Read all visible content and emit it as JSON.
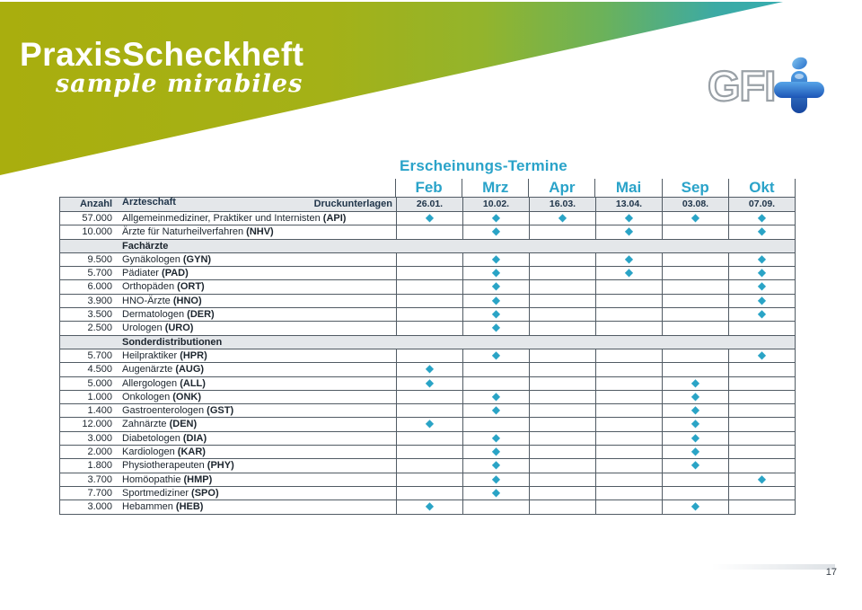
{
  "slide": {
    "brand_title": "PraxisScheckheft",
    "brand_subtitle": "sample mirabiles",
    "logo_text": "GFI",
    "page_number": "17",
    "colors": {
      "accent_cyan": "#2aa3c9",
      "navy": "#20354a",
      "banner_left_olive": "#a9ae0e",
      "banner_right_teal": "#2fb0bf",
      "band_gray": "#e4e7ea",
      "grid_line": "#515b64",
      "marker_cyan": "#2aa4c6"
    }
  },
  "table": {
    "title": "Erscheinungs-Termine",
    "marker": "◆",
    "months": [
      "Feb",
      "Mrz",
      "Apr",
      "Mai",
      "Sep",
      "Okt"
    ],
    "dates": [
      "26.01.",
      "10.02.",
      "16.03.",
      "13.04.",
      "03.08.",
      "07.09."
    ],
    "header": {
      "count": "Anzahl",
      "group": "Ärzteschaft",
      "right": "Druckunterlagen"
    },
    "rows": [
      {
        "type": "data",
        "count": "57.000",
        "name": "Allgemeinmediziner, Praktiker und Internisten",
        "code": "(API)",
        "marks": [
          1,
          1,
          1,
          1,
          1,
          1
        ]
      },
      {
        "type": "data",
        "count": "10.000",
        "name": "Ärzte für Naturheilverfahren",
        "code": "(NHV)",
        "marks": [
          0,
          1,
          0,
          1,
          0,
          1
        ]
      },
      {
        "type": "section",
        "label": "Fachärzte"
      },
      {
        "type": "data",
        "count": "9.500",
        "name": "Gynäkologen",
        "code": "(GYN)",
        "marks": [
          0,
          1,
          0,
          1,
          0,
          1
        ]
      },
      {
        "type": "data",
        "count": "5.700",
        "name": "Pädiater",
        "code": "(PAD)",
        "marks": [
          0,
          1,
          0,
          1,
          0,
          1
        ]
      },
      {
        "type": "data",
        "count": "6.000",
        "name": "Orthopäden",
        "code": "(ORT)",
        "marks": [
          0,
          1,
          0,
          0,
          0,
          1
        ]
      },
      {
        "type": "data",
        "count": "3.900",
        "name": "HNO-Ärzte",
        "code": "(HNO)",
        "marks": [
          0,
          1,
          0,
          0,
          0,
          1
        ]
      },
      {
        "type": "data",
        "count": "3.500",
        "name": "Dermatologen",
        "code": "(DER)",
        "marks": [
          0,
          1,
          0,
          0,
          0,
          1
        ]
      },
      {
        "type": "data",
        "count": "2.500",
        "name": "Urologen",
        "code": "(URO)",
        "marks": [
          0,
          1,
          0,
          0,
          0,
          0
        ]
      },
      {
        "type": "section",
        "label": "Sonderdistributionen"
      },
      {
        "type": "data",
        "count": "5.700",
        "name": "Heilpraktiker",
        "code": "(HPR)",
        "marks": [
          0,
          1,
          0,
          0,
          0,
          1
        ]
      },
      {
        "type": "data",
        "count": "4.500",
        "name": "Augenärzte",
        "code": "(AUG)",
        "marks": [
          1,
          0,
          0,
          0,
          0,
          0
        ]
      },
      {
        "type": "data",
        "count": "5.000",
        "name": "Allergologen",
        "code": "(ALL)",
        "marks": [
          1,
          0,
          0,
          0,
          1,
          0
        ]
      },
      {
        "type": "data",
        "count": "1.000",
        "name": "Onkologen",
        "code": "(ONK)",
        "marks": [
          0,
          1,
          0,
          0,
          1,
          0
        ]
      },
      {
        "type": "data",
        "count": "1.400",
        "name": "Gastroenterologen",
        "code": "(GST)",
        "marks": [
          0,
          1,
          0,
          0,
          1,
          0
        ]
      },
      {
        "type": "data",
        "count": "12.000",
        "name": "Zahnärzte",
        "code": "(DEN)",
        "marks": [
          1,
          0,
          0,
          0,
          1,
          0
        ]
      },
      {
        "type": "data",
        "count": "3.000",
        "name": "Diabetologen",
        "code": "(DIA)",
        "marks": [
          0,
          1,
          0,
          0,
          1,
          0
        ]
      },
      {
        "type": "data",
        "count": "2.000",
        "name": "Kardiologen",
        "code": "(KAR)",
        "marks": [
          0,
          1,
          0,
          0,
          1,
          0
        ]
      },
      {
        "type": "data",
        "count": "1.800",
        "name": "Physiotherapeuten",
        "code": "(PHY)",
        "marks": [
          0,
          1,
          0,
          0,
          1,
          0
        ]
      },
      {
        "type": "data",
        "count": "3.700",
        "name": "Homöopathie",
        "code": "(HMP)",
        "marks": [
          0,
          1,
          0,
          0,
          0,
          1
        ]
      },
      {
        "type": "data",
        "count": "7.700",
        "name": "Sportmediziner",
        "code": "(SPO)",
        "marks": [
          0,
          1,
          0,
          0,
          0,
          0
        ]
      },
      {
        "type": "data",
        "count": "3.000",
        "name": "Hebammen",
        "code": "(HEB)",
        "marks": [
          1,
          0,
          0,
          0,
          1,
          0
        ]
      }
    ]
  }
}
